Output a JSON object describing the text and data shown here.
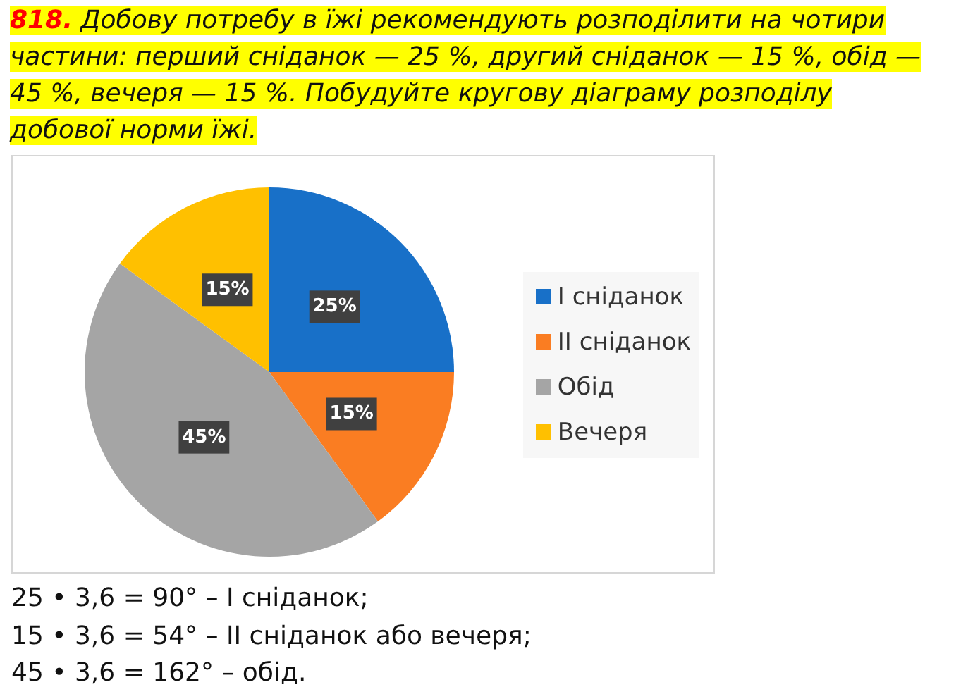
{
  "chart_data": {
    "type": "pie",
    "title": "818. Добову потребу в їжі рекомендують розподілити на чотири частини: перший сніданок — 25 %, другий сніданок — 15 %, обід — 45 %, вечеря — 15 %. Побудуйте кругову діаграму розподілу добової норми їжі.",
    "categories": [
      "I сніданок",
      "II сніданок",
      "Обід",
      "Вечеря"
    ],
    "values": [
      25,
      15,
      45,
      15
    ],
    "colors": [
      "#1870c8",
      "#fa7d22",
      "#a5a5a5",
      "#ffc000"
    ],
    "value_labels": [
      "25%",
      "15%",
      "45%",
      "15%"
    ],
    "legend": "right",
    "annotations": [
      "25 • 3,6 = 90° – I сніданок;",
      "15 • 3,6 = 54° – II сніданок або вечеря;",
      "45 • 3,6 = 162° – обід."
    ]
  }
}
